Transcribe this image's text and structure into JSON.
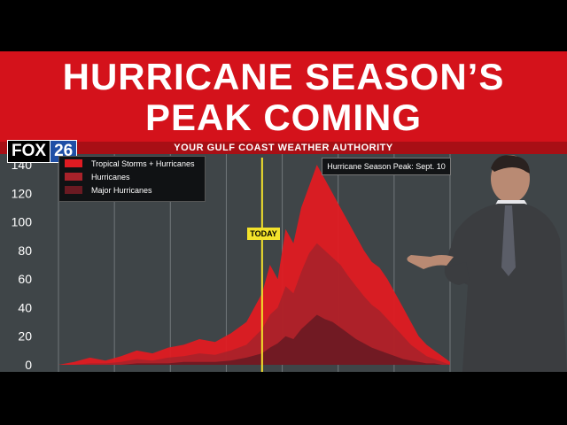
{
  "headline": {
    "line1": "HURRICANE SEASON’S",
    "line2": "PEAK COMING"
  },
  "network": {
    "brand": "FOX",
    "channel": "26",
    "tagline": "YOUR GULF COAST WEATHER AUTHORITY"
  },
  "colors": {
    "banner": "#d4121b",
    "tropical": "#e01b22",
    "hurricanes": "#a8222a",
    "major": "#6a1a22",
    "today": "#f3e22b"
  },
  "chart_data": {
    "type": "area",
    "title": "",
    "xlabel": "",
    "ylabel": "",
    "ylim": [
      0,
      145
    ],
    "yticks": [
      0,
      20,
      40,
      60,
      80,
      100,
      120,
      140
    ],
    "annotations": {
      "peak": "Hurricane Season Peak: Sept. 10",
      "today": "TODAY"
    },
    "legend_position": "top-left",
    "x": [
      0,
      4,
      8,
      12,
      16,
      20,
      24,
      28,
      32,
      36,
      40,
      44,
      48,
      52,
      54,
      56,
      58,
      60,
      62,
      64,
      66,
      68,
      70,
      72,
      74,
      76,
      78,
      80,
      82,
      84,
      86,
      88,
      90,
      92,
      94,
      96,
      98,
      100
    ],
    "series": [
      {
        "name": "Tropical Storms + Hurricanes",
        "values": [
          0,
          2,
          5,
          3,
          6,
          10,
          8,
          12,
          14,
          18,
          16,
          22,
          30,
          50,
          70,
          60,
          95,
          85,
          110,
          125,
          140,
          130,
          120,
          110,
          100,
          90,
          80,
          72,
          68,
          60,
          50,
          40,
          30,
          20,
          14,
          10,
          6,
          2
        ]
      },
      {
        "name": "Hurricanes",
        "values": [
          0,
          0,
          1,
          1,
          2,
          4,
          3,
          5,
          6,
          8,
          7,
          10,
          14,
          25,
          35,
          40,
          55,
          50,
          65,
          78,
          85,
          80,
          75,
          70,
          62,
          55,
          48,
          42,
          38,
          32,
          26,
          20,
          14,
          10,
          6,
          4,
          2,
          0
        ]
      },
      {
        "name": "Major Hurricanes",
        "values": [
          0,
          0,
          0,
          0,
          0,
          1,
          1,
          1,
          2,
          2,
          2,
          3,
          5,
          8,
          12,
          15,
          20,
          18,
          25,
          30,
          35,
          32,
          30,
          26,
          22,
          18,
          15,
          12,
          10,
          8,
          6,
          4,
          3,
          2,
          1,
          1,
          0,
          0
        ]
      }
    ]
  }
}
